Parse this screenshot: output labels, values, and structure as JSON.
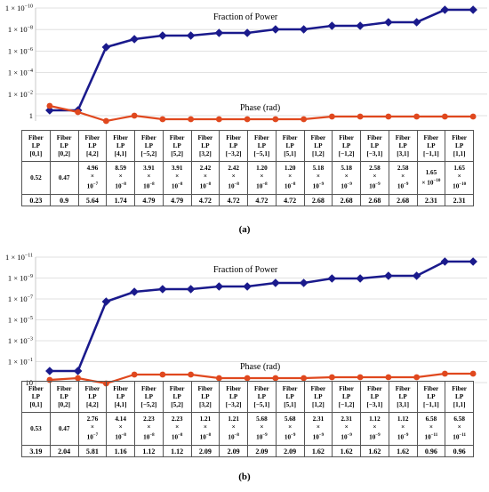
{
  "chart_data": [
    {
      "panel": "(a)",
      "type": "line",
      "y_scale": "log",
      "y_ticks": [
        {
          "label": "1 × 10",
          "sup": "−10"
        },
        {
          "label": "1 × 10",
          "sup": "−8"
        },
        {
          "label": "1 × 10",
          "sup": "−6"
        },
        {
          "label": "1 × 10",
          "sup": "−4"
        },
        {
          "label": "1 × 10",
          "sup": "−2"
        },
        {
          "label": "1",
          "sup": ""
        }
      ],
      "modes": [
        [
          "Fiber",
          "LP",
          "[0,1]"
        ],
        [
          "Fiber",
          "LP",
          "[0,2]"
        ],
        [
          "Fiber",
          "LP",
          "[4,2]"
        ],
        [
          "Fiber",
          "LP",
          "[4,1]"
        ],
        [
          "Fiber",
          "LP",
          "[−5,2]"
        ],
        [
          "Fiber",
          "LP",
          "[5,2]"
        ],
        [
          "Fiber",
          "LP",
          "[3,2]"
        ],
        [
          "Fiber",
          "LP",
          "[−3,2]"
        ],
        [
          "Fiber",
          "LP",
          "[−5,1]"
        ],
        [
          "Fiber",
          "LP",
          "[5,1]"
        ],
        [
          "Fiber",
          "LP",
          "[1,2]"
        ],
        [
          "Fiber",
          "LP",
          "[−1,2]"
        ],
        [
          "Fiber",
          "LP",
          "[−3,1]"
        ],
        [
          "Fiber",
          "LP",
          "[3,1]"
        ],
        [
          "Fiber",
          "LP",
          "[−1,1]"
        ],
        [
          "Fiber",
          "LP",
          "[1,1]"
        ]
      ],
      "power_text": [
        [
          "0.52"
        ],
        [
          "0.47"
        ],
        [
          "4.96",
          "×",
          "10",
          "−7"
        ],
        [
          "8.59",
          "×",
          "10",
          "−8"
        ],
        [
          "3.91",
          "×",
          "10",
          "−8"
        ],
        [
          "3.91",
          "×",
          "10",
          "−8"
        ],
        [
          "2.42",
          "×",
          "10",
          "−8"
        ],
        [
          "2.42",
          "×",
          "10",
          "−8"
        ],
        [
          "1.20",
          "×",
          "10",
          "−8"
        ],
        [
          "1.20",
          "×",
          "10",
          "−8"
        ],
        [
          "5.18",
          "×",
          "10",
          "−9"
        ],
        [
          "5.18",
          "×",
          "10",
          "−9"
        ],
        [
          "2.58",
          "×",
          "10",
          "−9"
        ],
        [
          "2.58",
          "×",
          "10",
          "−9"
        ],
        [
          "1.65",
          "× 10",
          "−10"
        ],
        [
          "1.65",
          "×",
          "10",
          "−10"
        ]
      ],
      "power_values": [
        0.52,
        0.47,
        4.96e-07,
        8.59e-08,
        3.91e-08,
        3.91e-08,
        2.42e-08,
        2.42e-08,
        1.2e-08,
        1.2e-08,
        5.18e-09,
        5.18e-09,
        2.58e-09,
        2.58e-09,
        1.65e-10,
        1.65e-10
      ],
      "phase_text": [
        "0.23",
        "0.9",
        "5.64",
        "1.74",
        "4.79",
        "4.79",
        "4.72",
        "4.72",
        "4.72",
        "4.72",
        "2.68",
        "2.68",
        "2.68",
        "2.68",
        "2.31",
        "2.31"
      ],
      "phase_values": [
        0.23,
        0.9,
        5.64,
        1.74,
        4.79,
        4.79,
        4.72,
        4.72,
        4.72,
        4.72,
        2.68,
        2.68,
        2.68,
        2.68,
        2.31,
        2.31
      ],
      "series": [
        {
          "name": "Fraction of Power",
          "color": "#1a1a8c"
        },
        {
          "name": "Phase (rad)",
          "color": "#e0481e"
        }
      ],
      "caption": "(a)"
    },
    {
      "panel": "(b)",
      "type": "line",
      "y_scale": "log",
      "y_ticks": [
        {
          "label": "1 × 10",
          "sup": "−11"
        },
        {
          "label": "1 × 10",
          "sup": "−9"
        },
        {
          "label": "1 × 10",
          "sup": "−7"
        },
        {
          "label": "1 × 10",
          "sup": "−5"
        },
        {
          "label": "1 × 10",
          "sup": "−3"
        },
        {
          "label": "1 × 10",
          "sup": "−1"
        },
        {
          "label": "10",
          "sup": ""
        }
      ],
      "modes": [
        [
          "Fiber",
          "LP",
          "[0,1]"
        ],
        [
          "Fiber",
          "LP",
          "[0,2]"
        ],
        [
          "Fiber",
          "LP",
          "[4,2]"
        ],
        [
          "Fiber",
          "LP",
          "[4,1]"
        ],
        [
          "Fiber",
          "LP",
          "[−5,2]"
        ],
        [
          "Fiber",
          "LP",
          "[5,2]"
        ],
        [
          "Fiber",
          "LP",
          "[3,2]"
        ],
        [
          "Fiber",
          "LP",
          "[−3,2]"
        ],
        [
          "Fiber",
          "LP",
          "[−5,1]"
        ],
        [
          "Fiber",
          "LP",
          "[5,1]"
        ],
        [
          "Fiber",
          "LP",
          "[1,2]"
        ],
        [
          "Fiber",
          "LP",
          "[−1,2]"
        ],
        [
          "Fiber",
          "LP",
          "[−3,1]"
        ],
        [
          "Fiber",
          "LP",
          "[3,1]"
        ],
        [
          "Fiber",
          "LP",
          "[−1,1]"
        ],
        [
          "Fiber",
          "LP",
          "[1,1]"
        ]
      ],
      "power_text": [
        [
          "0.53"
        ],
        [
          "0.47"
        ],
        [
          "2.76",
          "×",
          "10",
          "−7"
        ],
        [
          "4.14",
          "×",
          "10",
          "−8"
        ],
        [
          "2.23",
          "×",
          "10",
          "−8"
        ],
        [
          "2.23",
          "×",
          "10",
          "−8"
        ],
        [
          "1.21",
          "×",
          "10",
          "−8"
        ],
        [
          "1.21",
          "×",
          "10",
          "−8"
        ],
        [
          "5.68",
          "×",
          "10",
          "−9"
        ],
        [
          "5.68",
          "×",
          "10",
          "−9"
        ],
        [
          "2.31",
          "×",
          "10",
          "−9"
        ],
        [
          "2.31",
          "×",
          "10",
          "−9"
        ],
        [
          "1.12",
          "×",
          "10",
          "−9"
        ],
        [
          "1.12",
          "×",
          "10",
          "−9"
        ],
        [
          "6.58",
          "×",
          "10",
          "−11"
        ],
        [
          "6.58",
          "×",
          "10",
          "−11"
        ]
      ],
      "power_values": [
        0.53,
        0.47,
        2.76e-07,
        4.14e-08,
        2.23e-08,
        2.23e-08,
        1.21e-08,
        1.21e-08,
        5.68e-09,
        5.68e-09,
        2.31e-09,
        2.31e-09,
        1.12e-09,
        1.12e-09,
        6.58e-11,
        6.58e-11
      ],
      "phase_text": [
        "3.19",
        "2.04",
        "5.81",
        "1.16",
        "1.12",
        "1.12",
        "2.09",
        "2.09",
        "2.09",
        "2.09",
        "1.62",
        "1.62",
        "1.62",
        "1.62",
        "0.96",
        "0.96"
      ],
      "phase_values": [
        3.19,
        2.04,
        5.81,
        1.16,
        1.12,
        1.12,
        2.09,
        2.09,
        2.09,
        2.09,
        1.62,
        1.62,
        1.62,
        1.62,
        0.96,
        0.96
      ],
      "series": [
        {
          "name": "Fraction of Power",
          "color": "#1a1a8c"
        },
        {
          "name": "Phase (rad)",
          "color": "#e0481e"
        }
      ],
      "caption": "(b)"
    }
  ]
}
